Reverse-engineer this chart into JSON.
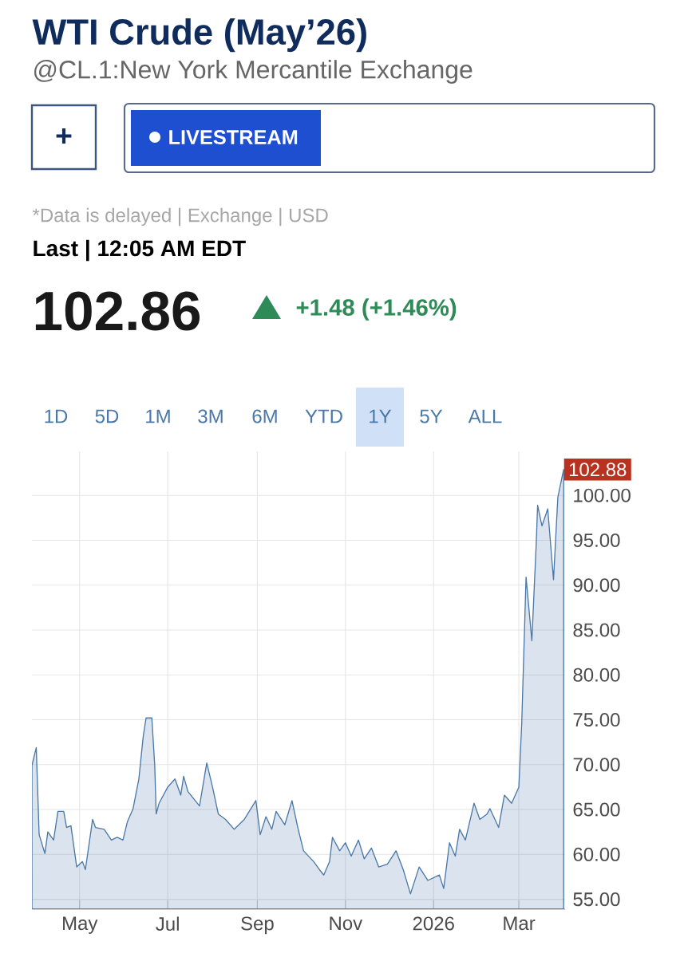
{
  "chart_data": {
    "type": "area",
    "title": "WTI Crude (May’26)",
    "subtitle": "@CL.1:New York Mercantile Exchange",
    "annotations": [
      "+",
      "LIVESTREAM",
      "*Data is delayed | Exchange | USD",
      "Last | 12:05 AM EDT",
      "102.86",
      "+1.48 (+1.46%)",
      "1D",
      "5D",
      "1M",
      "3M",
      "6M",
      "YTD",
      "1Y",
      "5Y",
      "ALL",
      {
        "text": "102.88",
        "x": "2026-04-01",
        "y": 102.88
      }
    ],
    "x": [
      "2025-03-29",
      "2025-04-01",
      "2025-04-03",
      "2025-04-07",
      "2025-04-09",
      "2025-04-13",
      "2025-04-16",
      "2025-04-20",
      "2025-04-22",
      "2025-04-25",
      "2025-04-29",
      "2025-05-03",
      "2025-05-05",
      "2025-05-10",
      "2025-05-12",
      "2025-05-18",
      "2025-05-23",
      "2025-05-27",
      "2025-05-31",
      "2025-06-03",
      "2025-06-07",
      "2025-06-11",
      "2025-06-14",
      "2025-06-16",
      "2025-06-20",
      "2025-06-22",
      "2025-06-23",
      "2025-06-25",
      "2025-07-01",
      "2025-07-06",
      "2025-07-10",
      "2025-07-12",
      "2025-07-15",
      "2025-07-23",
      "2025-07-28",
      "2025-08-01",
      "2025-08-05",
      "2025-08-10",
      "2025-08-16",
      "2025-08-23",
      "2025-08-31",
      "2025-09-03",
      "2025-09-07",
      "2025-09-11",
      "2025-09-14",
      "2025-09-20",
      "2025-09-25",
      "2025-09-29",
      "2025-10-03",
      "2025-10-10",
      "2025-10-14",
      "2025-10-17",
      "2025-10-21",
      "2025-10-23",
      "2025-10-28",
      "2025-11-01",
      "2025-11-05",
      "2025-11-10",
      "2025-11-14",
      "2025-11-19",
      "2025-11-24",
      "2025-11-30",
      "2025-12-06",
      "2025-12-11",
      "2025-12-16",
      "2025-12-22",
      "2025-12-28",
      "2026-01-05",
      "2026-01-08",
      "2026-01-12",
      "2026-01-16",
      "2026-01-19",
      "2026-01-23",
      "2026-01-29",
      "2026-02-02",
      "2026-02-07",
      "2026-02-09",
      "2026-02-15",
      "2026-02-19",
      "2026-02-24",
      "2026-03-01",
      "2026-03-03",
      "2026-03-06",
      "2026-03-10",
      "2026-03-13",
      "2026-03-14",
      "2026-03-17",
      "2026-03-21",
      "2026-03-25",
      "2026-03-28",
      "2026-04-01"
    ],
    "values": [
      69.9,
      71.9,
      62.2,
      60.1,
      62.5,
      61.6,
      64.8,
      64.8,
      63.0,
      63.2,
      58.6,
      59.2,
      58.3,
      63.9,
      63.0,
      62.8,
      61.6,
      61.9,
      61.6,
      63.6,
      65.1,
      68.4,
      73.1,
      75.2,
      75.2,
      69.9,
      64.5,
      65.7,
      67.5,
      68.4,
      66.6,
      68.7,
      67.0,
      65.4,
      70.2,
      67.5,
      64.5,
      63.9,
      62.8,
      63.9,
      66.0,
      62.2,
      64.2,
      62.8,
      64.8,
      63.3,
      66.0,
      63.0,
      60.4,
      59.2,
      58.3,
      57.7,
      59.2,
      61.9,
      60.4,
      61.3,
      59.8,
      61.6,
      59.5,
      60.7,
      58.6,
      58.9,
      60.4,
      58.3,
      55.6,
      58.6,
      57.1,
      57.7,
      56.2,
      61.3,
      59.8,
      62.8,
      61.6,
      65.7,
      63.9,
      64.5,
      65.1,
      63.0,
      66.6,
      65.7,
      67.5,
      74.6,
      90.9,
      83.8,
      94.5,
      98.9,
      96.6,
      98.5,
      90.6,
      99.8,
      102.88
    ],
    "color": "#4a78a8",
    "xlim": [
      "2025-03-29",
      "2026-04-02"
    ],
    "xticks": [
      {
        "value": "2025-05-01",
        "label": "May"
      },
      {
        "value": "2025-07-01",
        "label": "Jul"
      },
      {
        "value": "2025-09-01",
        "label": "Sep"
      },
      {
        "value": "2025-11-01",
        "label": "Nov"
      },
      {
        "value": "2026-01-01",
        "label": "2026"
      },
      {
        "value": "2026-03-01",
        "label": "Mar"
      }
    ],
    "ylim": [
      53.9,
      104.9
    ],
    "yticks": [
      {
        "value": 55,
        "label": "55.00"
      },
      {
        "value": 60,
        "label": "60.00"
      },
      {
        "value": 65,
        "label": "65.00"
      },
      {
        "value": 70,
        "label": "70.00"
      },
      {
        "value": 75,
        "label": "75.00"
      },
      {
        "value": 80,
        "label": "80.00"
      },
      {
        "value": 85,
        "label": "85.00"
      },
      {
        "value": 90,
        "label": "90.00"
      },
      {
        "value": 95,
        "label": "95.00"
      },
      {
        "value": 100,
        "label": "100.00"
      }
    ],
    "grid": true
  }
}
